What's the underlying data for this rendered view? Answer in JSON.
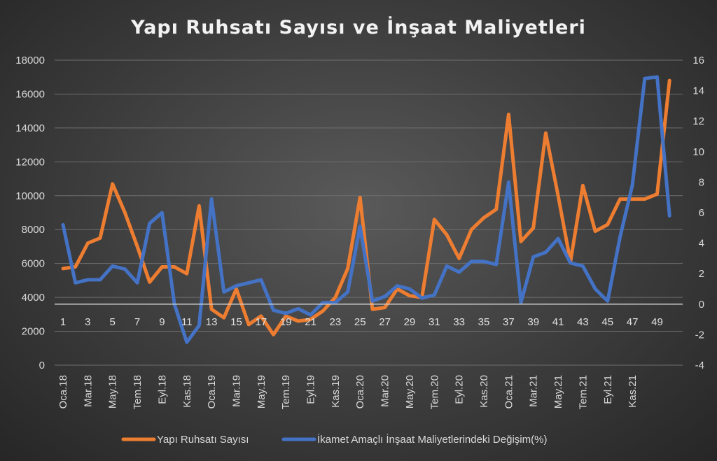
{
  "chart_data": {
    "type": "line",
    "title": "Yapı Ruhsatı Sayısı ve İnşaat Maliyetleri",
    "x": [
      1,
      2,
      3,
      4,
      5,
      6,
      7,
      8,
      9,
      10,
      11,
      12,
      13,
      14,
      15,
      16,
      17,
      18,
      19,
      20,
      21,
      22,
      23,
      24,
      25,
      26,
      27,
      28,
      29,
      30,
      31,
      32,
      33,
      34,
      35,
      36,
      37,
      38,
      39,
      40,
      41,
      42,
      43,
      44,
      45,
      46,
      47,
      48,
      49,
      50
    ],
    "x_number_labels": [
      "1",
      "3",
      "5",
      "7",
      "9",
      "11",
      "13",
      "15",
      "17",
      "19",
      "21",
      "23",
      "25",
      "27",
      "29",
      "31",
      "33",
      "35",
      "37",
      "39",
      "41",
      "43",
      "45",
      "47",
      "49"
    ],
    "x_number_positions": [
      1,
      3,
      5,
      7,
      9,
      11,
      13,
      15,
      17,
      19,
      21,
      23,
      25,
      27,
      29,
      31,
      33,
      35,
      37,
      39,
      41,
      43,
      45,
      47,
      49
    ],
    "x_category_labels": [
      "Oca.18",
      "Mar.18",
      "May.18",
      "Tem.18",
      "Eyl.18",
      "Kas.18",
      "Oca.19",
      "Mar.19",
      "May.19",
      "Tem.19",
      "Eyl.19",
      "Kas.19",
      "Oca.20",
      "Mar.20",
      "May.20",
      "Tem.20",
      "Eyl.20",
      "Kas.20",
      "Oca.21",
      "Mar.21",
      "May.21",
      "Tem.21",
      "Eyl.21",
      "Kas.21"
    ],
    "x_category_positions": [
      1,
      3,
      5,
      7,
      9,
      11,
      13,
      15,
      17,
      19,
      21,
      23,
      25,
      27,
      29,
      31,
      33,
      35,
      37,
      39,
      41,
      43,
      45,
      47
    ],
    "y_left": {
      "ylim": [
        0,
        18000
      ],
      "ticks": [
        "0",
        "2000",
        "4000",
        "6000",
        "8000",
        "10000",
        "12000",
        "14000",
        "16000",
        "18000"
      ],
      "tick_values": [
        0,
        2000,
        4000,
        6000,
        8000,
        10000,
        12000,
        14000,
        16000,
        18000
      ]
    },
    "y_right": {
      "ylim": [
        -4,
        16
      ],
      "ticks": [
        "-4",
        "-2",
        "0",
        "2",
        "4",
        "6",
        "8",
        "10",
        "12",
        "14",
        "16"
      ],
      "tick_values": [
        -4,
        -2,
        0,
        2,
        4,
        6,
        8,
        10,
        12,
        14,
        16
      ]
    },
    "grid": true,
    "legend_position": "bottom",
    "series": [
      {
        "name": "Yapı Ruhsatı Sayısı",
        "axis": "left",
        "color": "#ed7d31",
        "values": [
          5700,
          5800,
          7200,
          7500,
          10700,
          9000,
          7000,
          4900,
          5800,
          5800,
          5400,
          9400,
          3300,
          2800,
          4500,
          2400,
          2900,
          1800,
          2900,
          2600,
          2700,
          3200,
          4000,
          5700,
          9900,
          3300,
          3400,
          4500,
          4100,
          4000,
          8600,
          7700,
          6300,
          8000,
          8700,
          9200,
          14800,
          7300,
          8100,
          13700,
          10000,
          6100,
          10600,
          7900,
          8300,
          9800,
          9800,
          9800,
          10100,
          16800
        ]
      },
      {
        "name": "İkamet Amaçlı İnşaat Maliyetlerindeki Değişim(%)",
        "axis": "right",
        "color": "#4472c4",
        "values": [
          5.2,
          1.4,
          1.6,
          1.6,
          2.5,
          2.3,
          1.4,
          5.3,
          6.0,
          0.0,
          -2.5,
          -1.4,
          6.9,
          0.8,
          1.2,
          1.4,
          1.6,
          -0.4,
          -0.6,
          -0.3,
          -0.7,
          0.1,
          0.1,
          0.8,
          5.1,
          0.2,
          0.5,
          1.2,
          1.0,
          0.4,
          0.6,
          2.5,
          2.1,
          2.8,
          2.8,
          2.6,
          8.0,
          0.1,
          3.1,
          3.4,
          4.3,
          2.7,
          2.5,
          1.0,
          0.2,
          4.4,
          7.8,
          14.8,
          14.9,
          5.8
        ]
      }
    ]
  }
}
